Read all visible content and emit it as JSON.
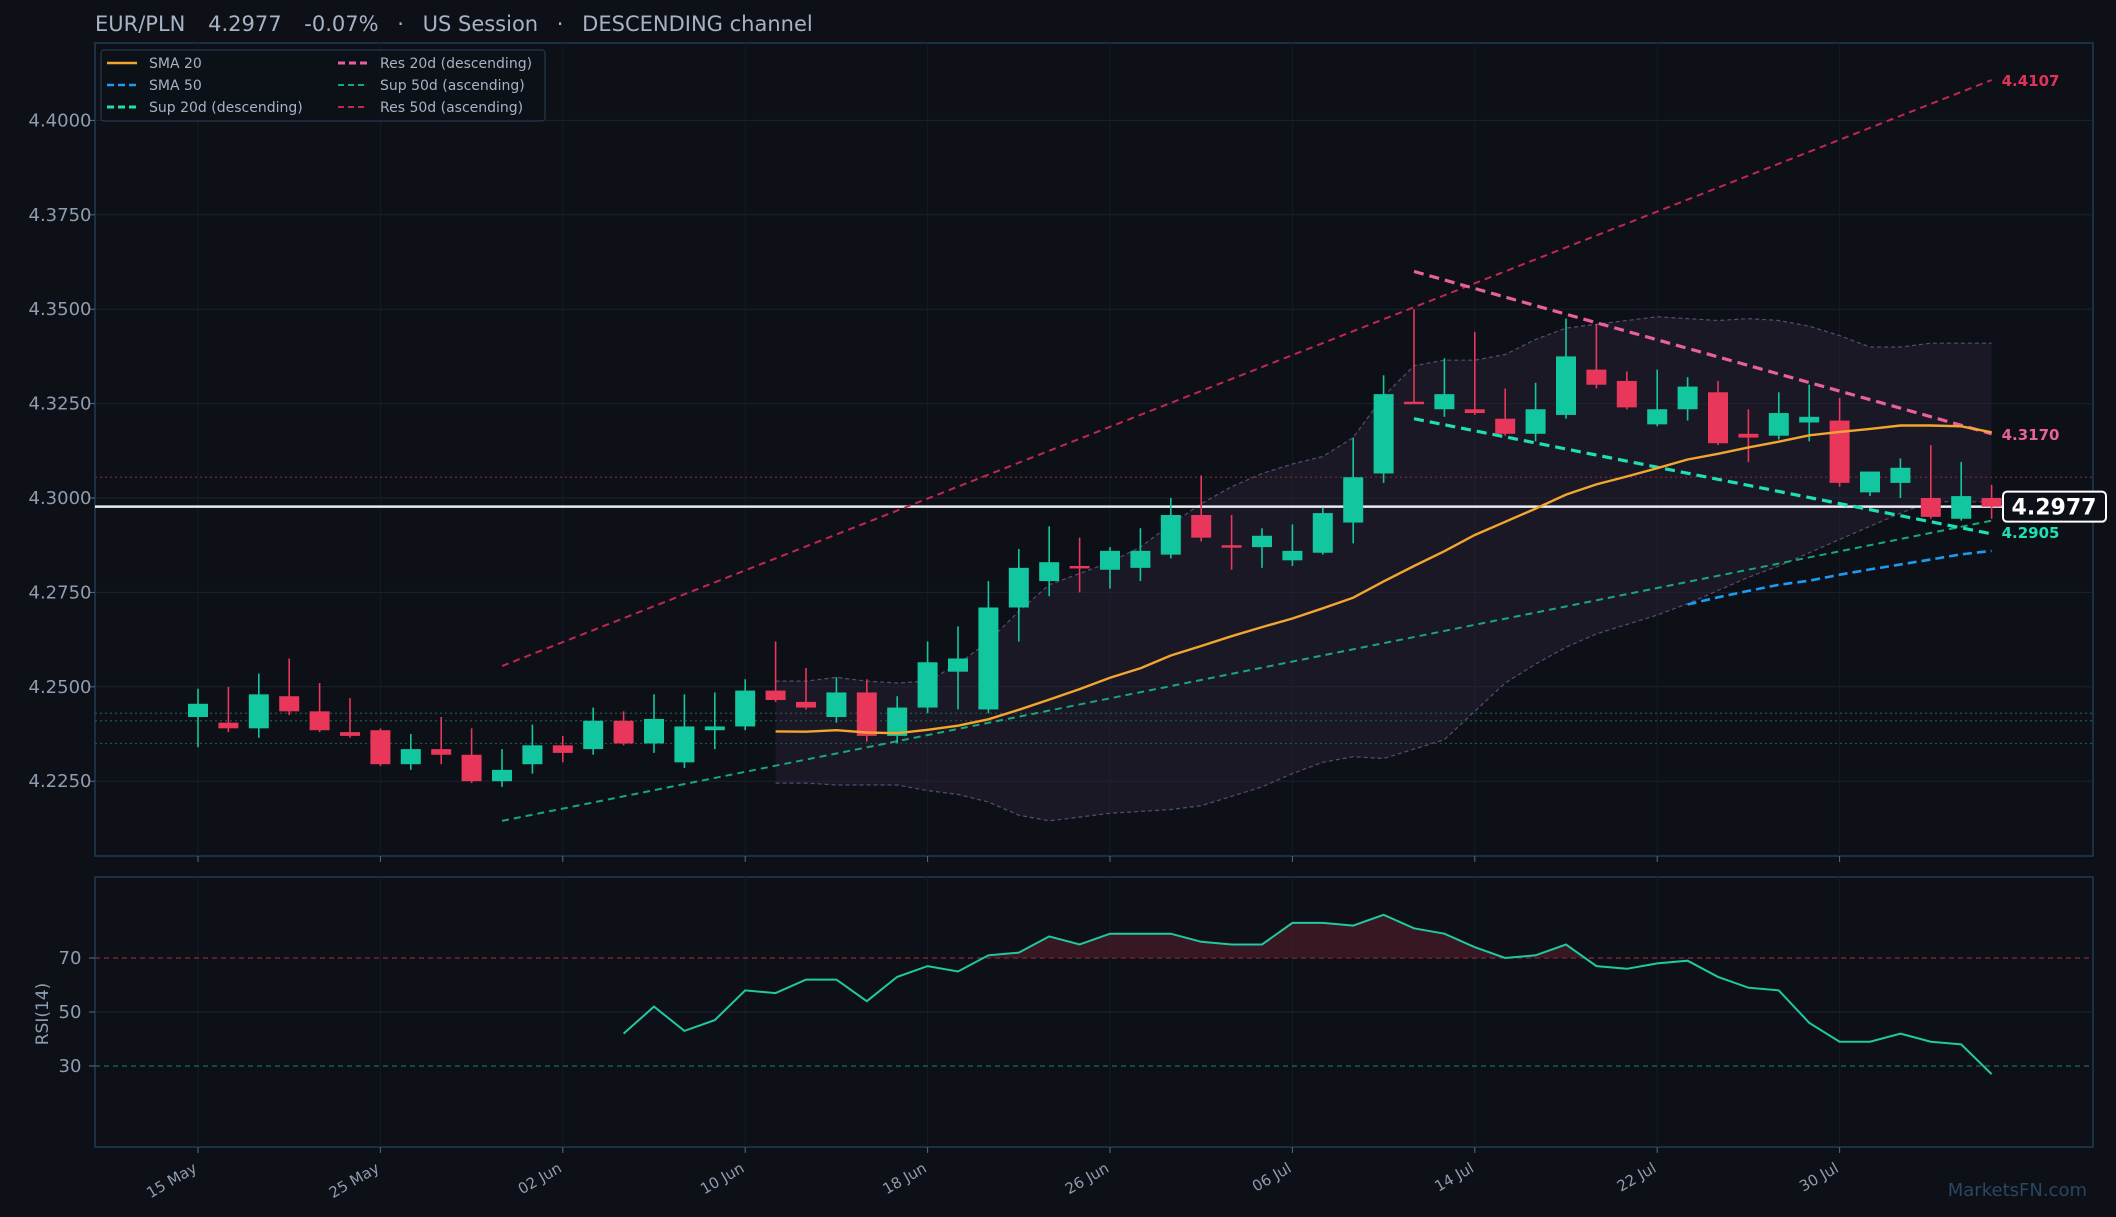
{
  "header": {
    "symbol": "EUR/PLN",
    "price": "4.2977",
    "change": "-0.07%",
    "session": "US Session",
    "pattern": "DESCENDING channel",
    "sep": "·"
  },
  "watermark": "MarketsFN.com",
  "colors": {
    "background": "#0d1017",
    "panel_border": "#1f3b52",
    "up": "#12c7a0",
    "down": "#e8375a",
    "sma20": "#f2a62f",
    "sma50": "#1d9bf0",
    "sup20": "#1ee0b4",
    "res20": "#e8609c",
    "sup50": "#18a878",
    "res50": "#c0284f",
    "rsi": "#20c9a0",
    "bands": "#6a5a8a",
    "text": "#8f9db0"
  },
  "chart_data": [
    {
      "type": "candlestick",
      "title": "EUR/PLN 4.2977 -0.07% · US Session · DESCENDING channel",
      "ylim": [
        4.205,
        4.415
      ],
      "y_ticks": [
        "4.2250",
        "4.2500",
        "4.2750",
        "4.3000",
        "4.3250",
        "4.3500",
        "4.3750",
        "4.4000"
      ],
      "x_tick_labels": [
        {
          "label": "15 May",
          "index": 0
        },
        {
          "label": "25 May",
          "index": 6
        },
        {
          "label": "02 Jun",
          "index": 12
        },
        {
          "label": "10 Jun",
          "index": 18
        },
        {
          "label": "18 Jun",
          "index": 24
        },
        {
          "label": "26 Jun",
          "index": 30
        },
        {
          "label": "06 Jul",
          "index": 36
        },
        {
          "label": "14 Jul",
          "index": 42
        },
        {
          "label": "22 Jul",
          "index": 48
        },
        {
          "label": "30 Jul",
          "index": 54
        }
      ],
      "ohlc": [
        [
          4.242,
          4.2495,
          4.234,
          4.2455
        ],
        [
          4.2405,
          4.25,
          4.238,
          4.239
        ],
        [
          4.239,
          4.2535,
          4.2365,
          4.248
        ],
        [
          4.2475,
          4.2575,
          4.2425,
          4.2435
        ],
        [
          4.2435,
          4.251,
          4.238,
          4.2385
        ],
        [
          4.238,
          4.247,
          4.2365,
          4.237
        ],
        [
          4.2385,
          4.239,
          4.229,
          4.2295
        ],
        [
          4.2295,
          4.2375,
          4.228,
          4.2335
        ],
        [
          4.2335,
          4.242,
          4.2295,
          4.232
        ],
        [
          4.232,
          4.239,
          4.2245,
          4.225
        ],
        [
          4.225,
          4.2335,
          4.2235,
          4.228
        ],
        [
          4.2295,
          4.24,
          4.227,
          4.2345
        ],
        [
          4.2345,
          4.237,
          4.23,
          4.2325
        ],
        [
          4.2335,
          4.2445,
          4.232,
          4.241
        ],
        [
          4.241,
          4.2435,
          4.2345,
          4.235
        ],
        [
          4.235,
          4.248,
          4.2325,
          4.2415
        ],
        [
          4.23,
          4.248,
          4.2285,
          4.2395
        ],
        [
          4.2385,
          4.2485,
          4.2335,
          4.2395
        ],
        [
          4.2395,
          4.252,
          4.2385,
          4.249
        ],
        [
          4.249,
          4.262,
          4.246,
          4.2465
        ],
        [
          4.246,
          4.255,
          4.244,
          4.2445
        ],
        [
          4.242,
          4.2525,
          4.2405,
          4.2485
        ],
        [
          4.2485,
          4.252,
          4.2355,
          4.237
        ],
        [
          4.237,
          4.2475,
          4.235,
          4.2445
        ],
        [
          4.2445,
          4.262,
          4.243,
          4.2565
        ],
        [
          4.254,
          4.266,
          4.244,
          4.2575
        ],
        [
          4.244,
          4.278,
          4.243,
          4.271
        ],
        [
          4.271,
          4.2865,
          4.262,
          4.2815
        ],
        [
          4.278,
          4.2925,
          4.274,
          4.283
        ],
        [
          4.282,
          4.2895,
          4.275,
          4.2815
        ],
        [
          4.281,
          4.287,
          4.276,
          4.286
        ],
        [
          4.2815,
          4.292,
          4.278,
          4.286
        ],
        [
          4.285,
          4.3,
          4.284,
          4.2955
        ],
        [
          4.2955,
          4.306,
          4.2885,
          4.2895
        ],
        [
          4.2875,
          4.2955,
          4.281,
          4.287
        ],
        [
          4.287,
          4.292,
          4.2815,
          4.29
        ],
        [
          4.2835,
          4.293,
          4.282,
          4.286
        ],
        [
          4.2855,
          4.2975,
          4.285,
          4.296
        ],
        [
          4.2935,
          4.316,
          4.288,
          4.3055
        ],
        [
          4.3065,
          4.3325,
          4.304,
          4.3275
        ],
        [
          4.3255,
          4.35,
          4.325,
          4.325
        ],
        [
          4.3235,
          4.337,
          4.3215,
          4.3275
        ],
        [
          4.3235,
          4.344,
          4.322,
          4.3225
        ],
        [
          4.321,
          4.329,
          4.3165,
          4.317
        ],
        [
          4.317,
          4.3305,
          4.315,
          4.3235
        ],
        [
          4.322,
          4.3475,
          4.321,
          4.3375
        ],
        [
          4.334,
          4.346,
          4.329,
          4.33
        ],
        [
          4.331,
          4.3335,
          4.3235,
          4.324
        ],
        [
          4.3195,
          4.334,
          4.319,
          4.3235
        ],
        [
          4.3235,
          4.332,
          4.3205,
          4.3295
        ],
        [
          4.328,
          4.331,
          4.314,
          4.3145
        ],
        [
          4.317,
          4.3235,
          4.3095,
          4.316
        ],
        [
          4.3165,
          4.328,
          4.3155,
          4.3225
        ],
        [
          4.32,
          4.33,
          4.315,
          4.3215
        ],
        [
          4.3205,
          4.3265,
          4.303,
          4.304
        ],
        [
          4.3015,
          4.307,
          4.3005,
          4.307
        ],
        [
          4.304,
          4.3105,
          4.3,
          4.308
        ],
        [
          4.3,
          4.314,
          4.2945,
          4.295
        ],
        [
          4.2945,
          4.3095,
          4.294,
          4.3005
        ],
        [
          4.3,
          4.3035,
          4.2945,
          4.2977
        ]
      ],
      "series": [
        {
          "name": "SMA 20",
          "start": 19,
          "values": [
            4.2382,
            4.2381,
            4.2385,
            4.2379,
            4.2377,
            4.2386,
            4.2397,
            4.2414,
            4.2439,
            4.2466,
            4.2494,
            4.2524,
            4.2549,
            4.2583,
            4.2608,
            4.2634,
            4.2658,
            4.2681,
            4.2708,
            4.2736,
            4.2779,
            4.282,
            4.2859,
            4.2902,
            4.2937,
            4.2972,
            4.3009,
            4.3036,
            4.3057,
            4.3079,
            4.3102,
            4.3117,
            4.3134,
            4.3149,
            4.3166,
            4.3175,
            4.3183,
            4.3192,
            4.3192,
            4.319,
            4.3174
          ]
        },
        {
          "name": "SMA 50",
          "start": 49,
          "values": [
            4.2718,
            4.2737,
            4.2754,
            4.277,
            4.2781,
            4.2797,
            4.2811,
            4.2824,
            4.2837,
            4.2851,
            4.286
          ]
        },
        {
          "name": "Sup 20d (descending)",
          "points": [
            [
              40,
              4.321
            ],
            [
              59,
              4.2905
            ]
          ]
        },
        {
          "name": "Res 20d (descending)",
          "points": [
            [
              40,
              4.36
            ],
            [
              59,
              4.317
            ]
          ]
        },
        {
          "name": "Sup 50d (ascending)",
          "points": [
            [
              10,
              4.2145
            ],
            [
              59,
              4.294
            ]
          ]
        },
        {
          "name": "Res 50d (ascending)",
          "points": [
            [
              10,
              4.2555
            ],
            [
              59,
              4.4107
            ]
          ]
        },
        {
          "name": "Bollinger upper",
          "start": 19,
          "values": [
            4.2515,
            4.2515,
            4.2525,
            4.2515,
            4.251,
            4.2515,
            4.256,
            4.262,
            4.27,
            4.277,
            4.28,
            4.283,
            4.287,
            4.293,
            4.2985,
            4.303,
            4.3065,
            4.309,
            4.311,
            4.316,
            4.327,
            4.335,
            4.3365,
            4.3365,
            4.338,
            4.342,
            4.345,
            4.346,
            4.347,
            4.348,
            4.3475,
            4.347,
            4.3475,
            4.347,
            4.3455,
            4.343,
            4.34,
            4.34,
            4.341,
            4.341,
            4.341
          ]
        },
        {
          "name": "Bollinger lower",
          "start": 19,
          "values": [
            4.2245,
            4.2245,
            4.224,
            4.224,
            4.224,
            4.2225,
            4.2215,
            4.2195,
            4.216,
            4.2145,
            4.2155,
            4.2165,
            4.217,
            4.2175,
            4.2185,
            4.221,
            4.2235,
            4.227,
            4.23,
            4.2315,
            4.231,
            4.2335,
            4.236,
            4.2435,
            4.251,
            4.256,
            4.2605,
            4.264,
            4.2665,
            4.269,
            4.272,
            4.2755,
            4.279,
            4.282,
            4.2855,
            4.289,
            4.2925,
            4.296,
            4.299,
            4.299,
            4.299
          ]
        }
      ],
      "horizontal_levels": {
        "current": 4.2977,
        "resistance_dotted": 4.3055,
        "support_dotted": [
          4.243,
          4.241,
          4.235
        ]
      },
      "level_labels": {
        "res50_end": "4.4107",
        "res20_end": "4.3170",
        "current": "4.2977",
        "sup20_end": "4.2905"
      },
      "legend": {
        "position": "top-left",
        "entries": [
          "SMA 20",
          "SMA 50",
          "Sup 20d (descending)",
          "Res 20d (descending)",
          "Sup 50d (ascending)",
          "Res 50d (ascending)"
        ]
      },
      "grid": true
    },
    {
      "type": "line",
      "ylabel": "RSI(14)",
      "ylim": [
        0,
        100
      ],
      "y_ticks": [
        "30",
        "50",
        "70"
      ],
      "overbought": 70,
      "oversold": 30,
      "start": 14,
      "values": [
        42,
        52,
        43,
        47,
        58,
        57,
        62,
        62,
        54,
        63,
        67,
        65,
        71,
        72,
        78,
        75,
        79,
        79,
        79,
        76,
        75,
        75,
        83,
        83,
        82,
        86,
        81,
        79,
        74,
        70,
        71,
        75,
        67,
        66,
        68,
        69,
        63,
        59,
        58,
        46,
        39,
        39,
        42,
        39,
        38,
        27
      ]
    }
  ]
}
